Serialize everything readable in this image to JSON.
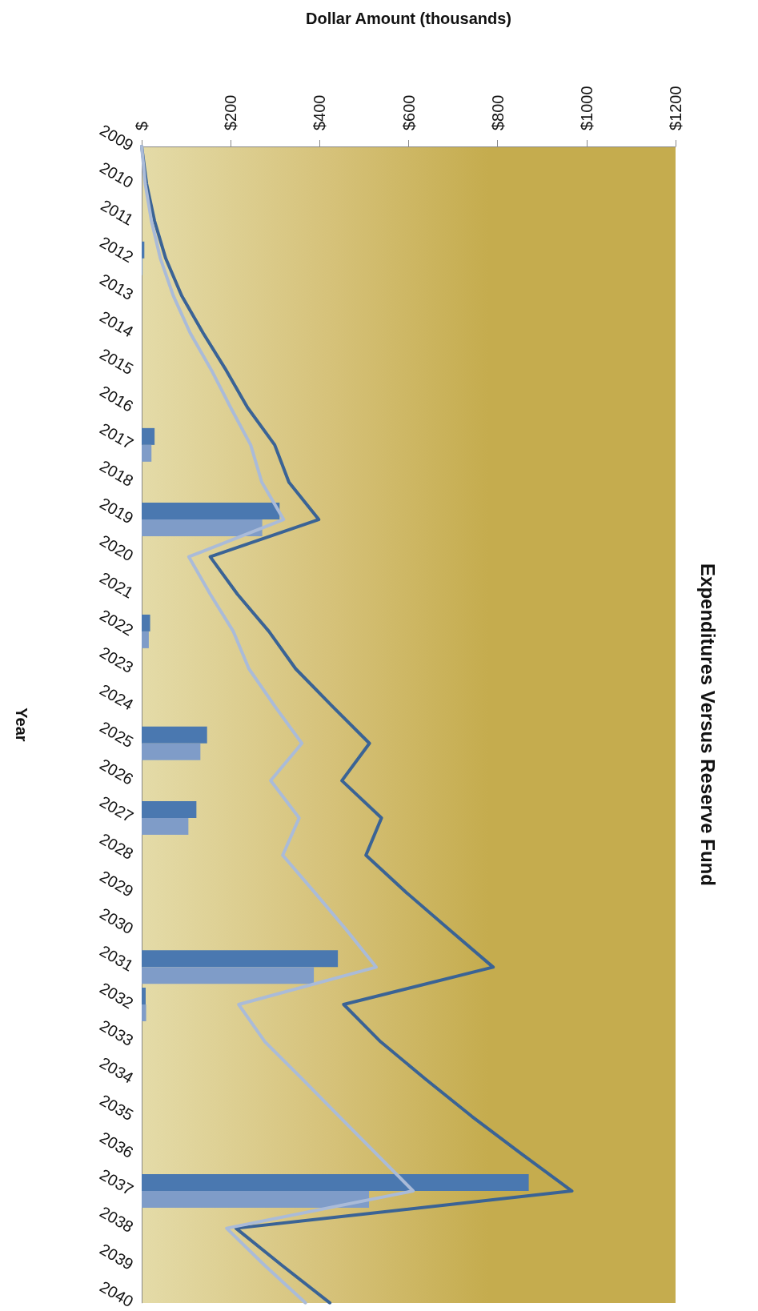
{
  "chart_data": {
    "type": "bar",
    "orientation": "horizontal",
    "title": "Expenditures Versus Reserve Fund",
    "xlabel": "Dollar Amount (thousands)",
    "ylabel": "Year",
    "categories": [
      "2009",
      "2010",
      "2011",
      "2012",
      "2013",
      "2014",
      "2015",
      "2016",
      "2017",
      "2018",
      "2019",
      "2020",
      "2021",
      "2022",
      "2023",
      "2024",
      "2025",
      "2026",
      "2027",
      "2028",
      "2029",
      "2030",
      "2031",
      "2032",
      "2033",
      "2034",
      "2035",
      "2036",
      "2037",
      "2038",
      "2039",
      "2040"
    ],
    "series": [
      {
        "color": "#4a78b0",
        "values": [
          null,
          null,
          null,
          6,
          null,
          null,
          null,
          null,
          29,
          null,
          310,
          null,
          null,
          19,
          null,
          null,
          147,
          null,
          123,
          null,
          null,
          null,
          441,
          9,
          null,
          null,
          null,
          null,
          870,
          null,
          null,
          null
        ]
      },
      {
        "color": "#7f9cc8",
        "values": [
          null,
          null,
          null,
          2,
          null,
          null,
          null,
          null,
          22,
          null,
          271,
          null,
          null,
          16,
          null,
          null,
          132,
          null,
          105,
          null,
          null,
          null,
          387,
          10,
          null,
          null,
          null,
          null,
          511,
          null,
          null,
          null
        ]
      },
      {
        "type": "line",
        "color": "#3a6395",
        "values": [
          0,
          11,
          29,
          54,
          90,
          138,
          190,
          238,
          299,
          331,
          398,
          154,
          215,
          286,
          346,
          428,
          512,
          450,
          539,
          504,
          595,
          692,
          790,
          454,
          537,
          638,
          742,
          853,
          967,
          212,
          316,
          423
        ]
      },
      {
        "type": "line",
        "color": "#aabbd8",
        "values": [
          0,
          8,
          22,
          42,
          71,
          109,
          157,
          200,
          245,
          270,
          319,
          106,
          154,
          206,
          241,
          299,
          360,
          290,
          354,
          317,
          389,
          460,
          527,
          218,
          277,
          361,
          444,
          527,
          610,
          191,
          277,
          368
        ]
      }
    ],
    "xlim": [
      0,
      1200
    ],
    "xticks": [
      {
        "value": 0,
        "label": "$"
      },
      {
        "value": 200,
        "label": "$200"
      },
      {
        "value": 400,
        "label": "$400"
      },
      {
        "value": 600,
        "label": "$600"
      },
      {
        "value": 800,
        "label": "$800"
      },
      {
        "value": 1000,
        "label": "$1000"
      },
      {
        "value": 1200,
        "label": "$1200"
      }
    ],
    "grid": false,
    "marker": "none",
    "line_style": "solid"
  }
}
